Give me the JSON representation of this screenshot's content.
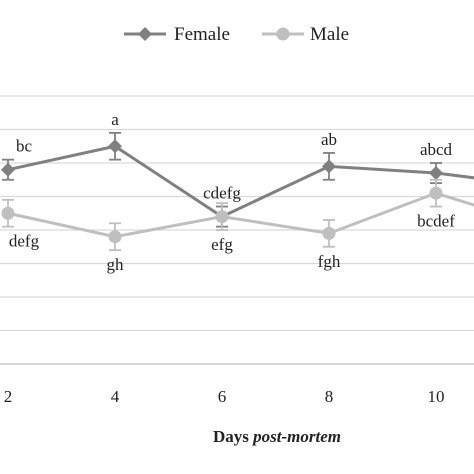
{
  "chart_data": {
    "type": "line",
    "xlabel_main": "Days ",
    "xlabel_italic": "post-mortem",
    "x": [
      2,
      4,
      6,
      8,
      10,
      11
    ],
    "x_ticks": [
      "2",
      "4",
      "6",
      "8",
      "10"
    ],
    "grid": true,
    "legend_position": "top",
    "series": [
      {
        "name": "Female",
        "color": "#808080",
        "marker": "diamond",
        "values": [
          58,
          65,
          44,
          59,
          57,
          55
        ],
        "errors": [
          3,
          4,
          3,
          4,
          3,
          0
        ],
        "labels": [
          "bc",
          "a",
          "cdefg",
          "ab",
          "abcd",
          ""
        ],
        "label_pos": [
          "above",
          "above",
          "above",
          "above",
          "above",
          "none"
        ]
      },
      {
        "name": "Male",
        "color": "#bfbfbf",
        "marker": "circle",
        "values": [
          45,
          38,
          44,
          39,
          51,
          46
        ],
        "errors": [
          4,
          4,
          4,
          4,
          4,
          0
        ],
        "labels": [
          "defg",
          "gh",
          "efg",
          "fgh",
          "bcdef",
          ""
        ],
        "label_pos": [
          "below",
          "below",
          "below",
          "below",
          "below",
          "none"
        ]
      }
    ]
  }
}
